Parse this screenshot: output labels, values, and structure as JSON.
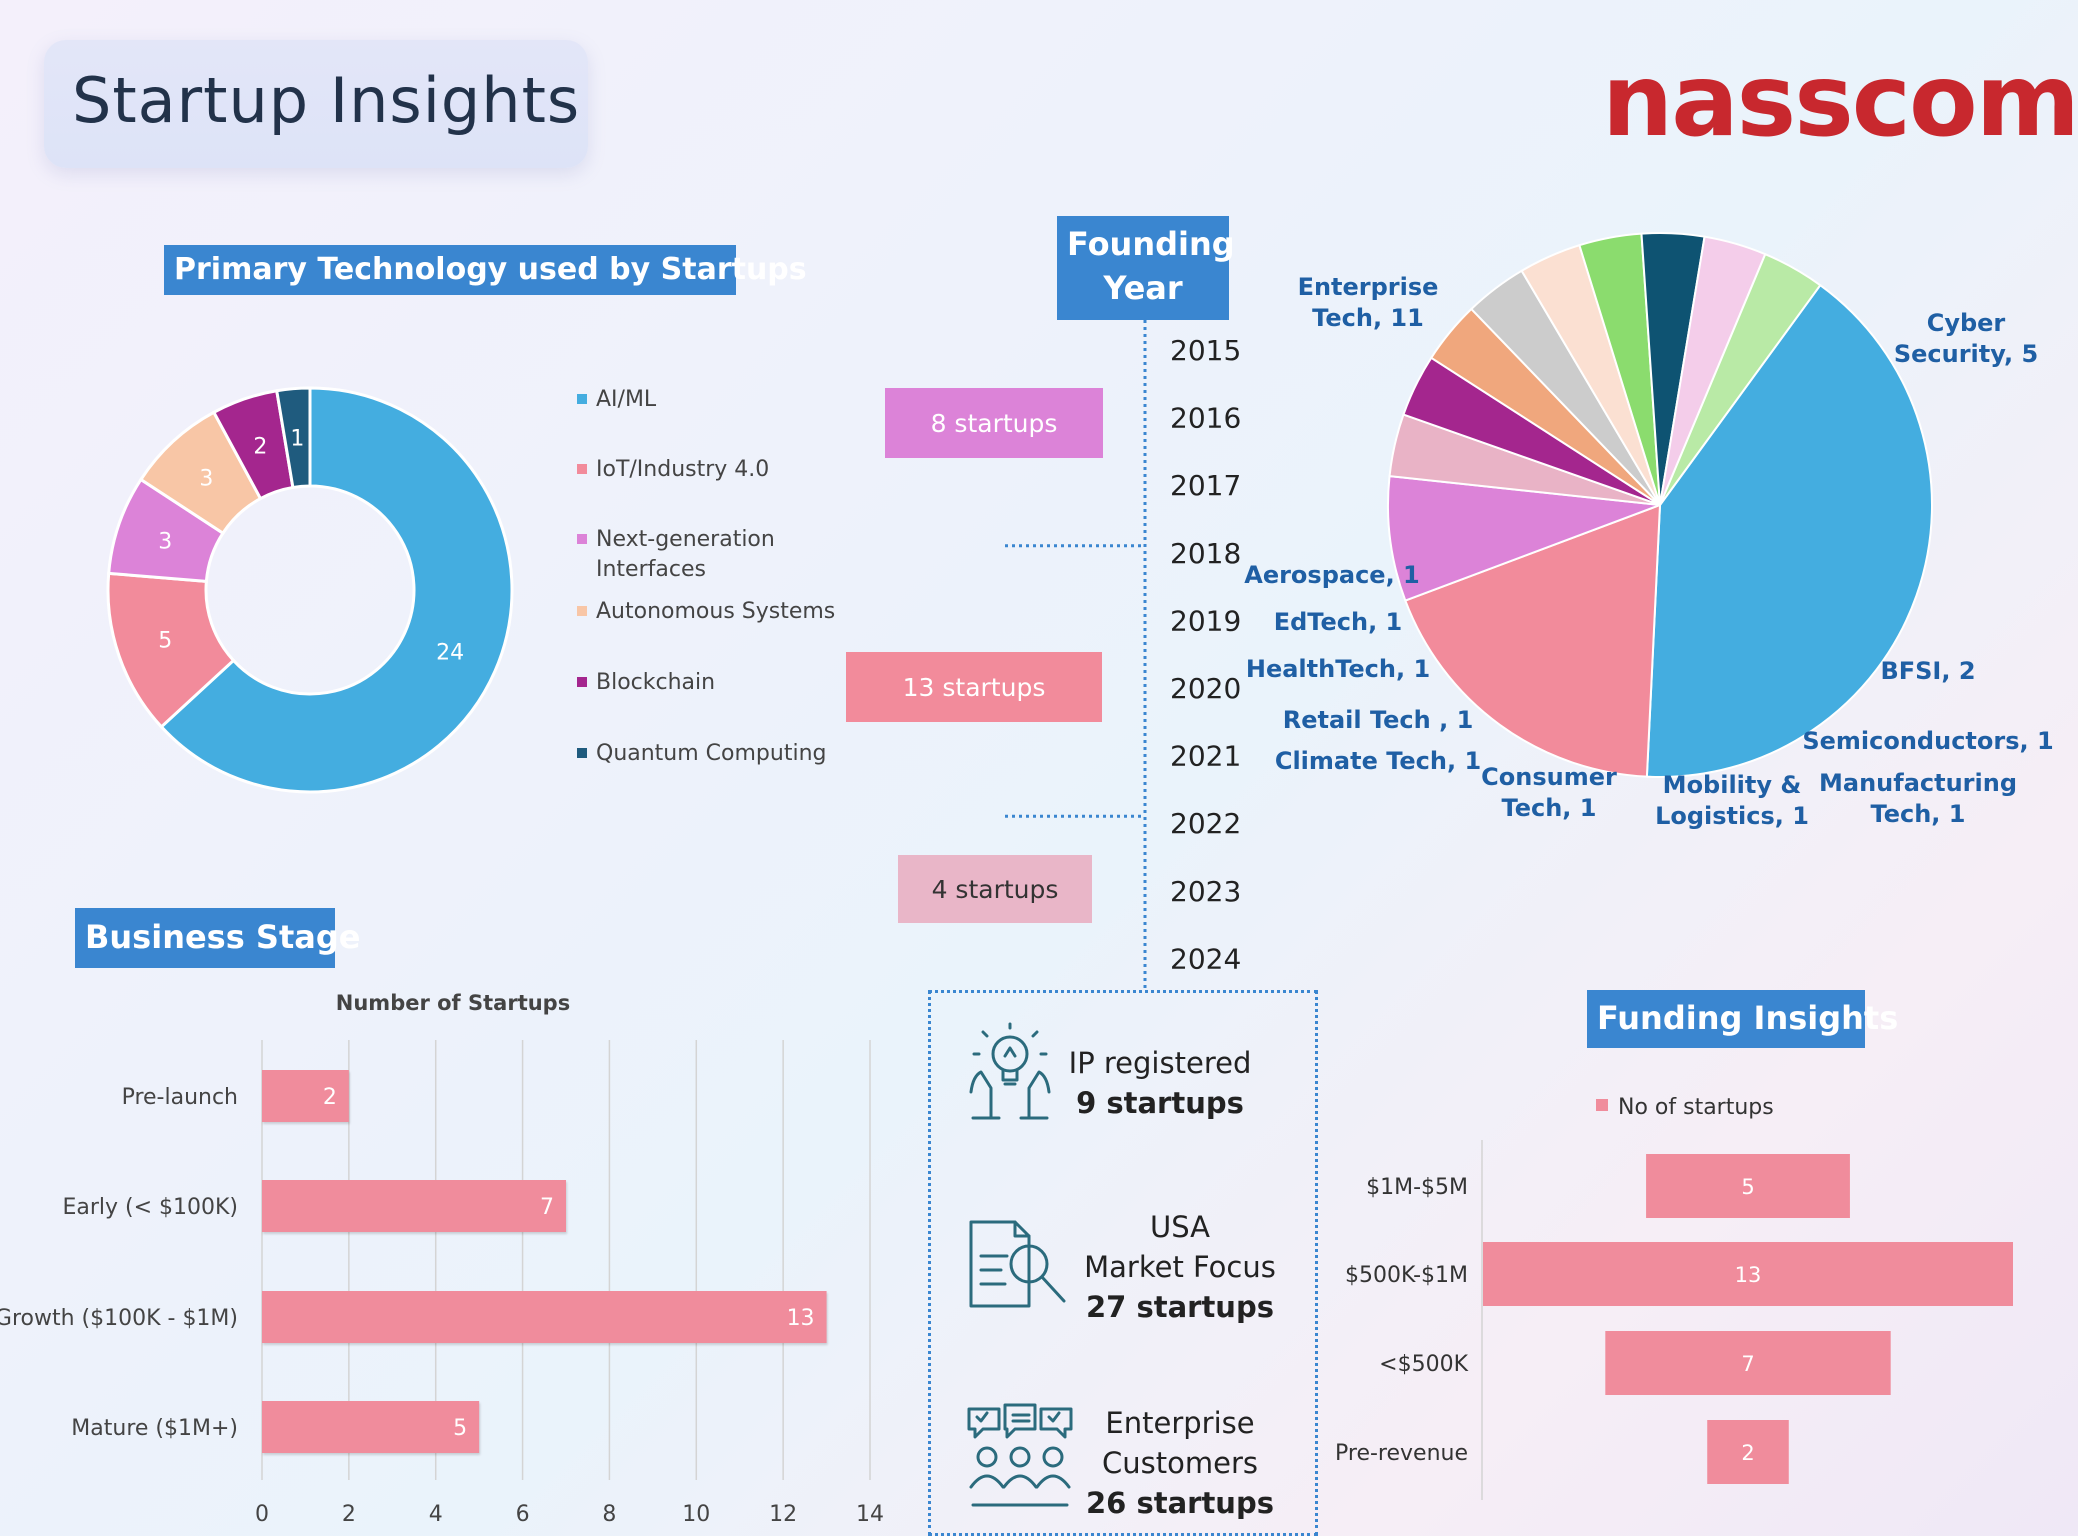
{
  "header": {
    "title": "Startup Insights",
    "logo": "nasscom"
  },
  "colors": {
    "accent": "#3a86d0",
    "bar_pink": "#f08c9c",
    "logo_red": "#c8282e"
  },
  "chart_data": [
    {
      "type": "pie",
      "title": "Primary Technology used by Startups",
      "donut": true,
      "categories": [
        "AI/ML",
        "IoT/Industry 4.0",
        "Next-generation Interfaces",
        "Autonomous Systems",
        "Blockchain",
        "Quantum Computing"
      ],
      "values": [
        24,
        5,
        3,
        3,
        2,
        1
      ],
      "colors": [
        "#44ade0",
        "#f28b9b",
        "#dc83d8",
        "#f8c6a6",
        "#a4268e",
        "#1f5b7e"
      ],
      "legend": "right"
    },
    {
      "type": "table",
      "title": "Founding Year",
      "years": [
        "2015",
        "2016",
        "2017",
        "2018",
        "2019",
        "2020",
        "2021",
        "2022",
        "2023",
        "2024"
      ],
      "groups": [
        {
          "label": "8 startups",
          "color": "#dc83d8"
        },
        {
          "label": "13 startups",
          "color": "#f28b9b"
        },
        {
          "label": "4 startups",
          "color": "#e9b6c8"
        }
      ]
    },
    {
      "type": "pie",
      "title": "",
      "categories": [
        "Enterprise Tech",
        "Cyber Security",
        "BFSI",
        "Semiconductors",
        "Manufacturing Tech",
        "Mobility & Logistics",
        "Consumer Tech",
        "Climate Tech",
        "Retail Tech",
        "HealthTech",
        "EdTech",
        "Aerospace"
      ],
      "values": [
        11,
        5,
        2,
        1,
        1,
        1,
        1,
        1,
        1,
        1,
        1,
        1
      ],
      "labels": [
        "Enterprise Tech, 11",
        "Cyber Security, 5",
        "BFSI, 2",
        "Semiconductors, 1",
        "Manufacturing Tech, 1",
        "Mobility & Logistics, 1",
        "Consumer Tech, 1",
        "Climate Tech, 1",
        "Retail Tech , 1",
        "HealthTech, 1",
        "EdTech, 1",
        "Aerospace, 1"
      ],
      "colors": [
        "#44ade0",
        "#f28b9b",
        "#dc83d8",
        "#e9b3c6",
        "#a4268e",
        "#f0a77d",
        "#cccccc",
        "#fbe0d2",
        "#8bdc6e",
        "#0e5372",
        "#f4cdea",
        "#b9eaa6"
      ]
    },
    {
      "type": "bar",
      "orientation": "horizontal",
      "title": "Business Stage",
      "subtitle": "Number of Startups",
      "categories": [
        "Pre-launch",
        "Early (< $100K)",
        "Growth ($100K - $1M)",
        "Mature ($1M+)"
      ],
      "values": [
        2,
        7,
        13,
        5
      ],
      "xlim": [
        0,
        14
      ],
      "xticks": [
        "0",
        "2",
        "4",
        "6",
        "8",
        "10",
        "12",
        "14"
      ],
      "grid": true
    },
    {
      "type": "bar",
      "orientation": "horizontal",
      "title": "Funding Insights",
      "legend_label": "No of startups",
      "categories": [
        "$1M-$5M",
        "$500K-$1M",
        "<$500K",
        "Pre-revenue"
      ],
      "values": [
        5,
        13,
        7,
        2
      ],
      "xlim": [
        0,
        13
      ]
    }
  ],
  "highlights": {
    "ip": {
      "line1": "IP registered",
      "value": "9 startups"
    },
    "usa": {
      "line1": "USA",
      "line2": "Market Focus",
      "value": "27 startups"
    },
    "enterprise": {
      "line1": "Enterprise",
      "line2": "Customers",
      "value": "26 startups"
    }
  },
  "icons": [
    "lightbulb-hands-icon",
    "document-search-icon",
    "team-chat-icon"
  ]
}
